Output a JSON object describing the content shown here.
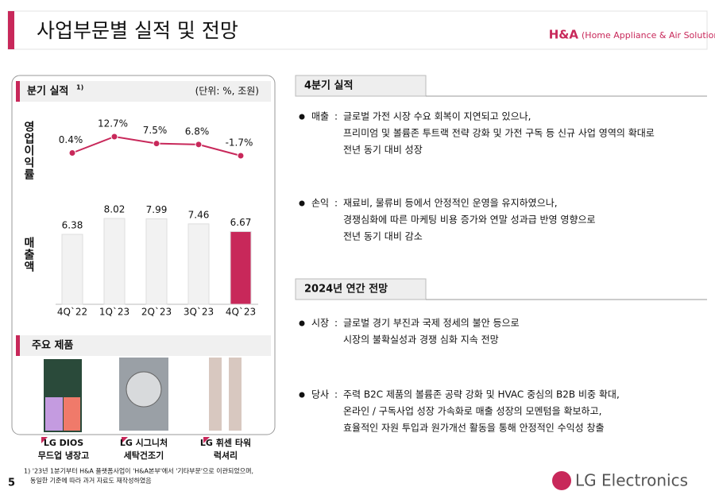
{
  "header": {
    "title": "사업부문별 실적 및 전망",
    "division": "H&A",
    "division_full": "(Home Appliance & Air Solution)"
  },
  "chart_data": {
    "type": "combo",
    "title": "분기 실적",
    "title_note": "1)",
    "unit": "(단위: %, 조원)",
    "categories": [
      "4Q`22",
      "1Q`23",
      "2Q`23",
      "3Q`23",
      "4Q`23"
    ],
    "series": [
      {
        "name": "영업이익률",
        "type": "line",
        "color": "#c8285a",
        "values": [
          0.4,
          12.7,
          7.5,
          6.8,
          -1.7
        ],
        "value_labels": [
          "0.4%",
          "12.7%",
          "7.5%",
          "6.8%",
          "-1.7%"
        ]
      },
      {
        "name": "매출액",
        "type": "bar",
        "colors": [
          "#f2f2f2",
          "#f2f2f2",
          "#f2f2f2",
          "#f2f2f2",
          "#c8285a"
        ],
        "values": [
          6.38,
          8.02,
          7.99,
          7.46,
          6.67
        ]
      }
    ]
  },
  "products": {
    "title": "주요 제품",
    "items": [
      {
        "lines": [
          "LG DIOS",
          "무드업 냉장고"
        ]
      },
      {
        "lines": [
          "LG 시그니처",
          "세탁건조기"
        ]
      },
      {
        "lines": [
          "LG 휘센 타워",
          "럭셔리"
        ]
      }
    ]
  },
  "sections": [
    {
      "title": "4분기 실적",
      "items": [
        {
          "label": "매출",
          "lines": [
            "글로벌 가전 시장 수요 회복이 지연되고 있으나,",
            "프리미엄 및 볼륨존 투트랙 전략 강화 및 가전 구독 등 신규 사업 영역의 확대로",
            "전년 동기 대비 성장"
          ]
        },
        {
          "label": "손익",
          "lines": [
            "재료비, 물류비 등에서 안정적인 운영을 유지하였으나,",
            "경쟁심화에 따른 마케팅 비용 증가와 연말 성과급 반영 영향으로",
            "전년 동기 대비 감소"
          ]
        }
      ]
    },
    {
      "title": "2024년 연간 전망",
      "items": [
        {
          "label": "시장",
          "lines": [
            "글로벌 경기 부진과 국제 정세의 불안 등으로",
            "시장의 불확실성과 경쟁 심화 지속 전망"
          ]
        },
        {
          "label": "당사",
          "lines": [
            "주력 B2C 제품의 볼륨존 공략 강화 및 HVAC 중심의 B2B 비중 확대,",
            "온라인 / 구독사업 성장 가속화로 매출 성장의 모멘텀을 확보하고,",
            "효율적인 자원 투입과 원가개선 활동을 통해 안정적인 수익성 창출"
          ]
        }
      ]
    }
  ],
  "footnote": [
    "1) '23년 1분기부터 H&A 플랫폼사업이 'H&A본부'에서 '기타부문'으로 이관되었으며,",
    "동일한 기준에 따라 과거 자료도 재작성하였음"
  ],
  "page_number": "5",
  "logo": "LG Electronics"
}
